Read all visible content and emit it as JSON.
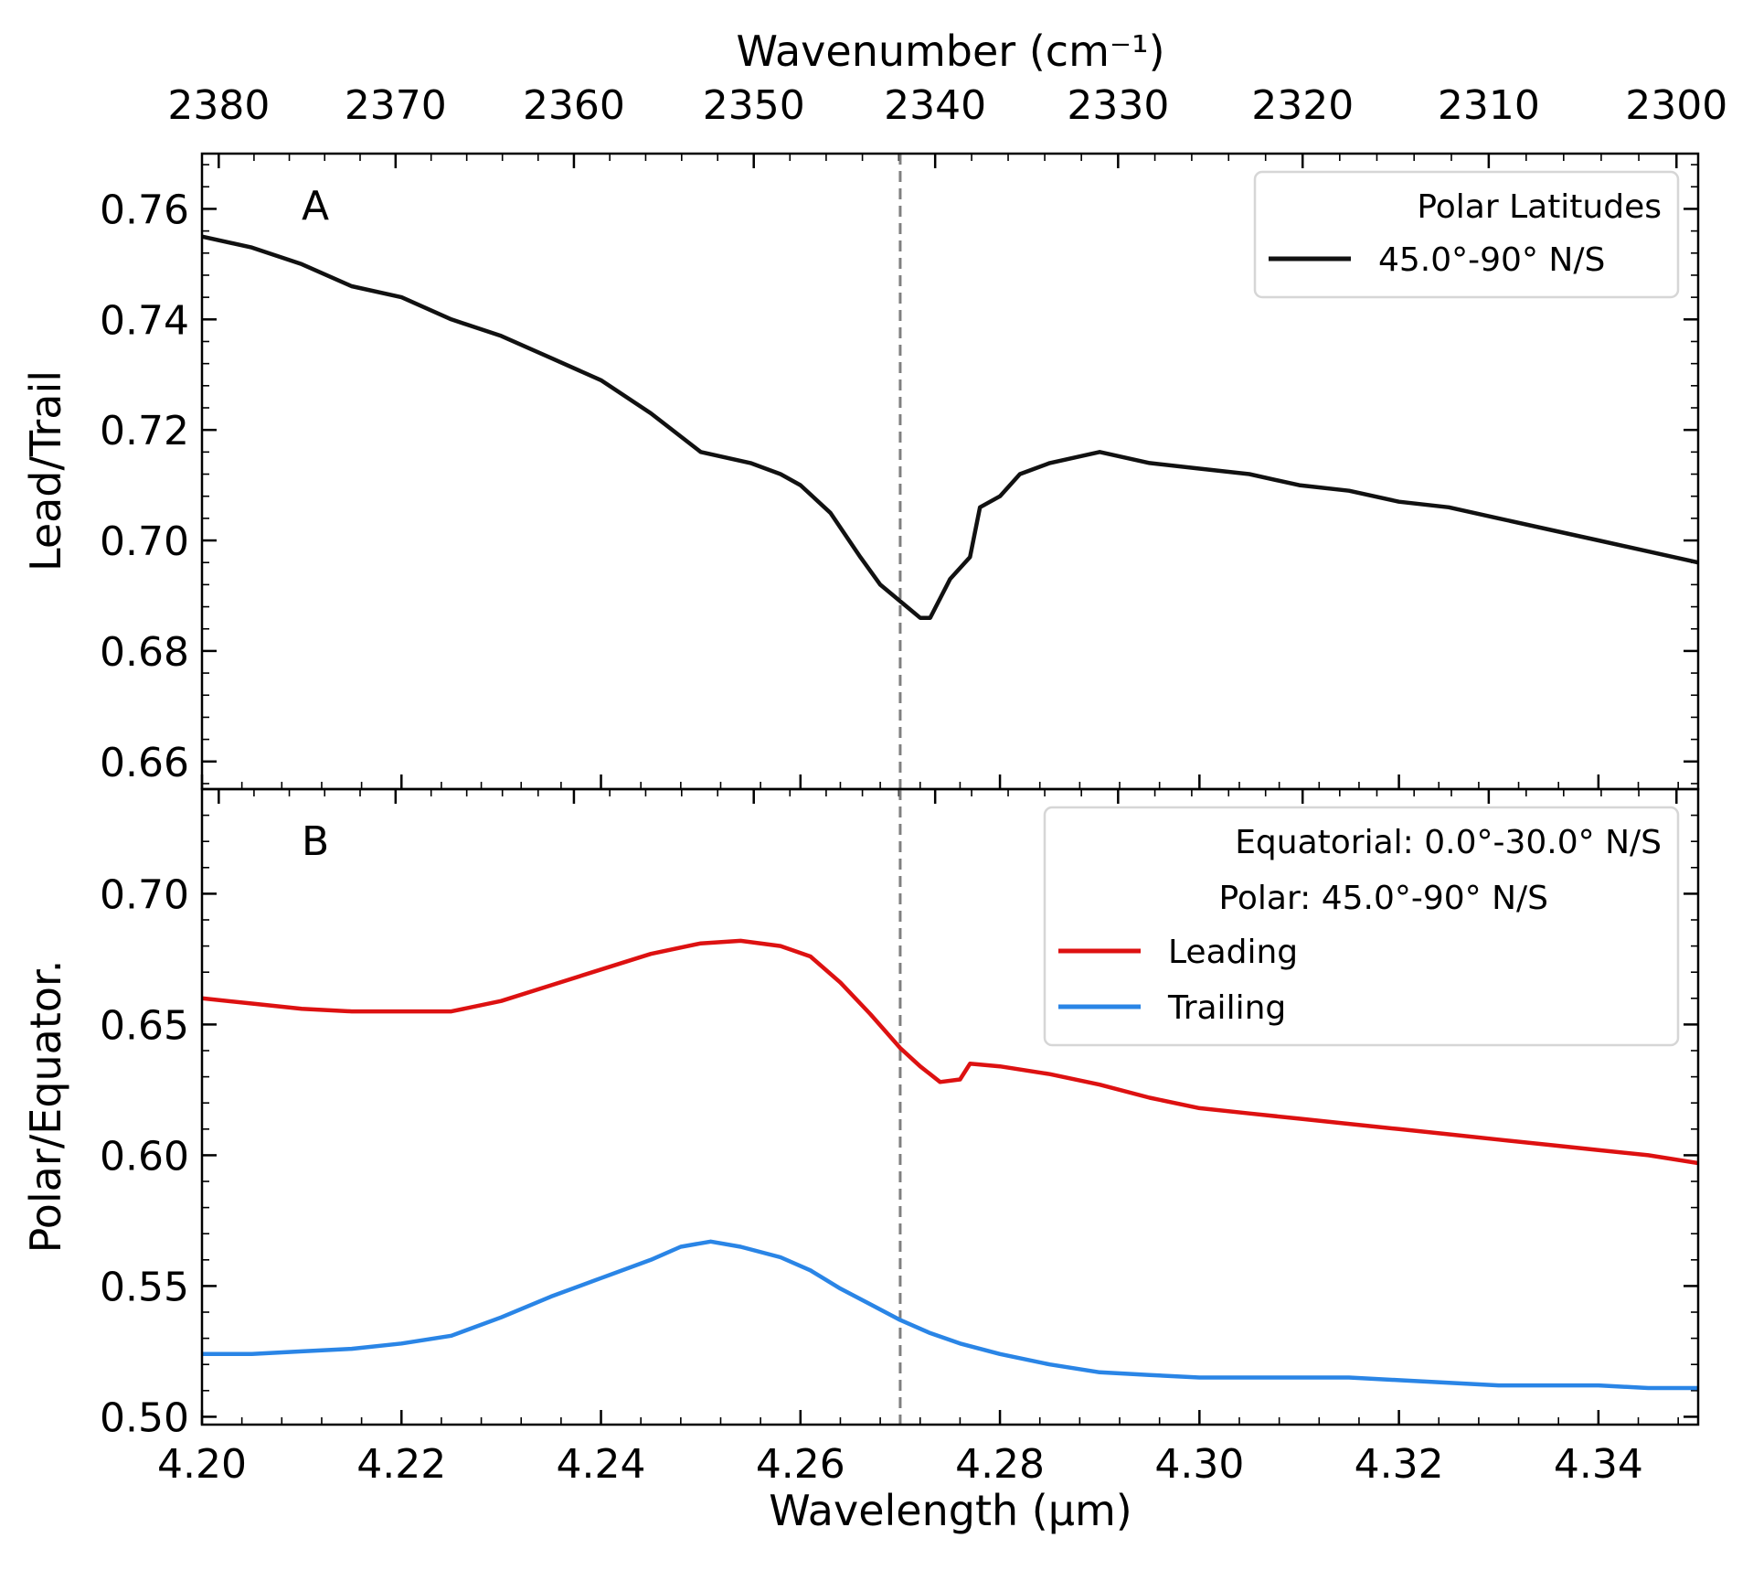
{
  "chart_data": [
    {
      "panel": "A",
      "type": "line",
      "top_axis": {
        "label": "Wavenumber (cm⁻¹)",
        "ticks": [
          2380,
          2370,
          2360,
          2350,
          2340,
          2330,
          2320,
          2310,
          2300
        ]
      },
      "xlim": [
        4.2,
        4.35
      ],
      "ylim": [
        0.655,
        0.77
      ],
      "ylabel": "Lead/Trail",
      "yticks": [
        0.66,
        0.68,
        0.7,
        0.72,
        0.74,
        0.76
      ],
      "ytick_labels": [
        "0.66",
        "0.68",
        "0.70",
        "0.72",
        "0.74",
        "0.76"
      ],
      "reference_line_x": 4.27,
      "legend": {
        "title": "Polar Latitudes",
        "position": "upper right",
        "entries": [
          "45.0°-90° N/S"
        ]
      },
      "series": [
        {
          "name": "45.0°-90° N/S",
          "color": "#111111",
          "x": [
            4.2,
            4.205,
            4.21,
            4.215,
            4.22,
            4.225,
            4.23,
            4.235,
            4.24,
            4.245,
            4.25,
            4.255,
            4.258,
            4.26,
            4.263,
            4.266,
            4.268,
            4.27,
            4.272,
            4.273,
            4.275,
            4.277,
            4.278,
            4.28,
            4.282,
            4.285,
            4.29,
            4.295,
            4.3,
            4.305,
            4.31,
            4.315,
            4.32,
            4.325,
            4.33,
            4.335,
            4.34,
            4.345,
            4.35
          ],
          "y": [
            0.755,
            0.753,
            0.75,
            0.746,
            0.744,
            0.74,
            0.737,
            0.733,
            0.729,
            0.723,
            0.716,
            0.714,
            0.712,
            0.71,
            0.705,
            0.697,
            0.692,
            0.689,
            0.686,
            0.686,
            0.693,
            0.697,
            0.706,
            0.708,
            0.712,
            0.714,
            0.716,
            0.714,
            0.713,
            0.712,
            0.71,
            0.709,
            0.707,
            0.706,
            0.704,
            0.702,
            0.7,
            0.698,
            0.696
          ]
        }
      ]
    },
    {
      "panel": "B",
      "type": "line",
      "xlabel": "Wavelength (μm)",
      "xlim": [
        4.2,
        4.35
      ],
      "xticks": [
        4.2,
        4.22,
        4.24,
        4.26,
        4.28,
        4.3,
        4.32,
        4.34
      ],
      "xtick_labels": [
        "4.20",
        "4.22",
        "4.24",
        "4.26",
        "4.28",
        "4.30",
        "4.32",
        "4.34"
      ],
      "ylim": [
        0.497,
        0.74
      ],
      "ylabel": "Polar/Equator.",
      "yticks": [
        0.5,
        0.55,
        0.6,
        0.65,
        0.7
      ],
      "ytick_labels": [
        "0.50",
        "0.55",
        "0.60",
        "0.65",
        "0.70"
      ],
      "reference_line_x": 4.27,
      "legend": {
        "title_lines": [
          "Equatorial: 0.0°-30.0° N/S",
          "Polar: 45.0°-90° N/S"
        ],
        "position": "upper right",
        "entries": [
          "Leading",
          "Trailing"
        ]
      },
      "series": [
        {
          "name": "Leading",
          "color": "#dd1111",
          "x": [
            4.2,
            4.205,
            4.21,
            4.215,
            4.22,
            4.225,
            4.23,
            4.235,
            4.24,
            4.245,
            4.25,
            4.254,
            4.258,
            4.261,
            4.264,
            4.267,
            4.27,
            4.272,
            4.274,
            4.276,
            4.277,
            4.28,
            4.285,
            4.29,
            4.295,
            4.3,
            4.305,
            4.31,
            4.315,
            4.32,
            4.325,
            4.33,
            4.335,
            4.34,
            4.345,
            4.35
          ],
          "y": [
            0.66,
            0.658,
            0.656,
            0.655,
            0.655,
            0.655,
            0.659,
            0.665,
            0.671,
            0.677,
            0.681,
            0.682,
            0.68,
            0.676,
            0.666,
            0.654,
            0.641,
            0.634,
            0.628,
            0.629,
            0.635,
            0.634,
            0.631,
            0.627,
            0.622,
            0.618,
            0.616,
            0.614,
            0.612,
            0.61,
            0.608,
            0.606,
            0.604,
            0.602,
            0.6,
            0.597
          ]
        },
        {
          "name": "Trailing",
          "color": "#2a85e6",
          "x": [
            4.2,
            4.205,
            4.21,
            4.215,
            4.22,
            4.225,
            4.23,
            4.235,
            4.24,
            4.245,
            4.248,
            4.251,
            4.254,
            4.258,
            4.261,
            4.264,
            4.267,
            4.27,
            4.273,
            4.276,
            4.28,
            4.285,
            4.29,
            4.295,
            4.3,
            4.305,
            4.31,
            4.315,
            4.32,
            4.325,
            4.33,
            4.335,
            4.34,
            4.345,
            4.35
          ],
          "y": [
            0.524,
            0.524,
            0.525,
            0.526,
            0.528,
            0.531,
            0.538,
            0.546,
            0.553,
            0.56,
            0.565,
            0.567,
            0.565,
            0.561,
            0.556,
            0.549,
            0.543,
            0.537,
            0.532,
            0.528,
            0.524,
            0.52,
            0.517,
            0.516,
            0.515,
            0.515,
            0.515,
            0.515,
            0.514,
            0.513,
            0.512,
            0.512,
            0.512,
            0.511,
            0.511
          ]
        }
      ]
    }
  ]
}
